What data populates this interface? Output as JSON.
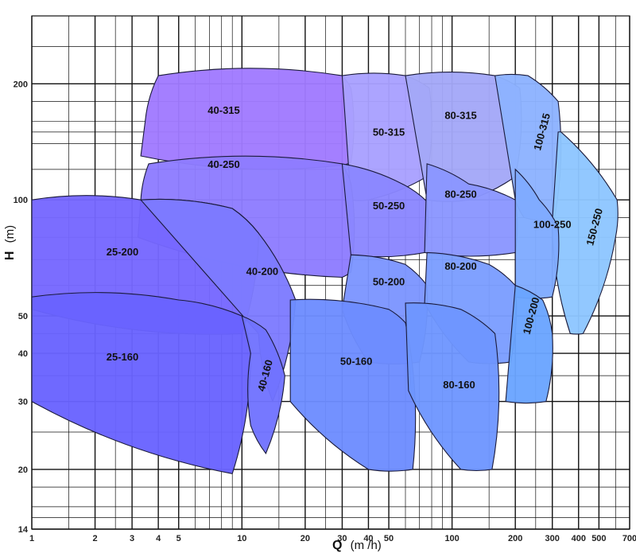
{
  "chart_data": {
    "type": "area",
    "xlabel": {
      "symbol": "Q",
      "unit": "(m /h)"
    },
    "ylabel": {
      "symbol": "H",
      "unit": "(m)"
    },
    "x_scale": "log",
    "y_scale": "log",
    "xlim": [
      1,
      700
    ],
    "ylim": [
      14,
      300
    ],
    "x_ticks": [
      1,
      2,
      3,
      4,
      5,
      10,
      20,
      30,
      40,
      50,
      100,
      200,
      300,
      400,
      500,
      700
    ],
    "y_ticks": [
      14,
      20,
      30,
      40,
      50,
      100,
      200
    ],
    "grid": true,
    "regions": [
      {
        "label": "40-315",
        "color": "#a07aff",
        "outline": [
          [
            3.5,
            167
          ],
          [
            4,
            210
          ],
          [
            30,
            210
          ],
          [
            33,
            195
          ],
          [
            33,
            125
          ],
          [
            30,
            123
          ],
          [
            3.3,
            130
          ]
        ],
        "label_at": [
          8.2,
          170
        ]
      },
      {
        "label": "50-315",
        "color": "#a9a0ff",
        "outline": [
          [
            30,
            210
          ],
          [
            60,
            210
          ],
          [
            78,
            195
          ],
          [
            76,
            115
          ],
          [
            40,
            100
          ],
          [
            33,
            100
          ]
        ],
        "label_at": [
          50,
          149
        ]
      },
      {
        "label": "80-315",
        "color": "#a3a8f8",
        "outline": [
          [
            60,
            210
          ],
          [
            160,
            210
          ],
          [
            210,
            195
          ],
          [
            200,
            115
          ],
          [
            120,
            100
          ],
          [
            76,
            100
          ]
        ],
        "label_at": [
          110,
          165
        ]
      },
      {
        "label": "100-315",
        "color": "#8cb2ff",
        "outline": [
          [
            160,
            210
          ],
          [
            230,
            210
          ],
          [
            320,
            180
          ],
          [
            305,
            88
          ],
          [
            220,
            90
          ],
          [
            200,
            100
          ]
        ],
        "label_at": [
          270,
          150
        ],
        "rotate": -75
      },
      {
        "label": "150-250",
        "color": "#8ec6ff",
        "outline": [
          [
            320,
            150
          ],
          [
            330,
            150
          ],
          [
            610,
            100
          ],
          [
            600,
            80
          ],
          [
            420,
            45
          ],
          [
            365,
            45
          ],
          [
            300,
            88
          ]
        ],
        "label_at": [
          480,
          85
        ],
        "rotate": -75
      },
      {
        "label": "40-250",
        "color": "#8e7cff",
        "outline": [
          [
            3.3,
            100
          ],
          [
            3.6,
            124
          ],
          [
            30,
            124
          ],
          [
            33,
            110
          ],
          [
            33,
            65
          ],
          [
            30,
            63
          ],
          [
            3.2,
            80
          ]
        ],
        "label_at": [
          8.2,
          123
        ]
      },
      {
        "label": "50-250",
        "color": "#8a86ff",
        "outline": [
          [
            30,
            124
          ],
          [
            58,
            110
          ],
          [
            76,
            99
          ],
          [
            74,
            73
          ],
          [
            33,
            72
          ]
        ],
        "label_at": [
          50,
          96
        ]
      },
      {
        "label": "80-250",
        "color": "#8a96ff",
        "outline": [
          [
            76,
            124
          ],
          [
            120,
            110
          ],
          [
            200,
            100
          ],
          [
            200,
            73
          ],
          [
            74,
            73
          ]
        ],
        "label_at": [
          110,
          103
        ]
      },
      {
        "label": "100-250",
        "color": "#7fabff",
        "outline": [
          [
            200,
            120
          ],
          [
            260,
            100
          ],
          [
            320,
            85
          ],
          [
            300,
            56
          ],
          [
            200,
            56
          ]
        ],
        "label_at": [
          300,
          86
        ]
      },
      {
        "label": "25-200",
        "color": "#7667ff",
        "outline": [
          [
            1,
            100
          ],
          [
            3.3,
            100
          ],
          [
            9,
            95
          ],
          [
            12,
            82
          ],
          [
            10,
            45
          ],
          [
            1,
            52
          ]
        ],
        "label_at": [
          2.7,
          73
        ]
      },
      {
        "label": "40-200",
        "color": "#7d7bff",
        "outline": [
          [
            3.3,
            100
          ],
          [
            9,
            95
          ],
          [
            12,
            82
          ],
          [
            18,
            55
          ],
          [
            14,
            30
          ],
          [
            12,
            45
          ]
        ],
        "label_at": [
          12.5,
          65
        ]
      },
      {
        "label": "50-200",
        "color": "#7c95ff",
        "outline": [
          [
            33,
            72
          ],
          [
            60,
            68
          ],
          [
            76,
            60
          ],
          [
            70,
            38
          ],
          [
            40,
            38
          ],
          [
            30,
            52
          ]
        ],
        "label_at": [
          50,
          61
        ]
      },
      {
        "label": "80-200",
        "color": "#7b9dff",
        "outline": [
          [
            76,
            73
          ],
          [
            150,
            68
          ],
          [
            200,
            60
          ],
          [
            190,
            38
          ],
          [
            120,
            38
          ],
          [
            74,
            54
          ]
        ],
        "label_at": [
          110,
          67
        ]
      },
      {
        "label": "100-200",
        "color": "#6aa4ff",
        "outline": [
          [
            200,
            60
          ],
          [
            270,
            55
          ],
          [
            300,
            45
          ],
          [
            280,
            30
          ],
          [
            180,
            30
          ]
        ],
        "label_at": [
          240,
          50
        ],
        "rotate": -75
      },
      {
        "label": "25-160",
        "color": "#6963ff",
        "outline": [
          [
            1,
            56
          ],
          [
            5,
            55
          ],
          [
            10,
            50
          ],
          [
            11,
            40
          ],
          [
            9,
            19.5
          ],
          [
            1,
            30
          ]
        ],
        "label_at": [
          2.7,
          39
        ]
      },
      {
        "label": "40-160",
        "color": "#7072ff",
        "outline": [
          [
            10,
            50
          ],
          [
            13,
            46
          ],
          [
            16,
            35
          ],
          [
            13,
            22
          ],
          [
            11,
            26
          ],
          [
            11,
            40
          ]
        ],
        "label_at": [
          13,
          35
        ],
        "rotate": -75
      },
      {
        "label": "50-160",
        "color": "#6d8dff",
        "outline": [
          [
            17,
            55
          ],
          [
            50,
            52
          ],
          [
            60,
            48
          ],
          [
            65,
            20
          ],
          [
            40,
            20
          ],
          [
            17,
            30
          ]
        ],
        "label_at": [
          35,
          38
        ]
      },
      {
        "label": "80-160",
        "color": "#6e96ff",
        "outline": [
          [
            60,
            54
          ],
          [
            110,
            52
          ],
          [
            160,
            45
          ],
          [
            155,
            20
          ],
          [
            110,
            20
          ],
          [
            62,
            32
          ]
        ],
        "label_at": [
          108,
          33
        ]
      }
    ]
  }
}
